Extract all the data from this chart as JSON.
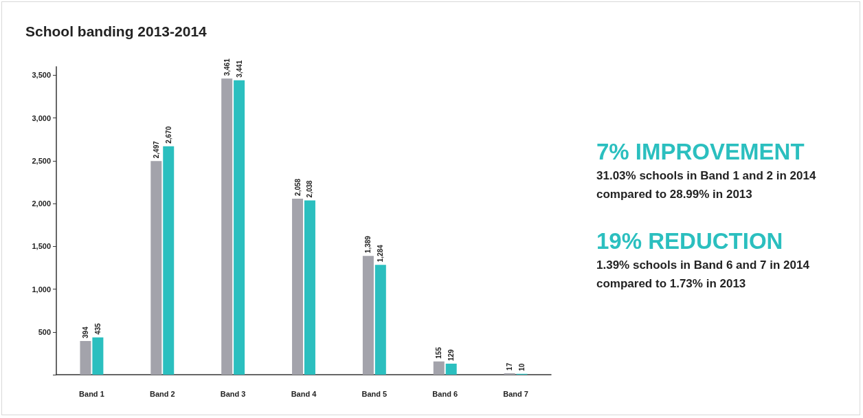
{
  "chart_data": {
    "type": "bar",
    "title": "School banding 2013-2014",
    "categories": [
      "Band 1",
      "Band 2",
      "Band 3",
      "Band 4",
      "Band 5",
      "Band 6",
      "Band 7"
    ],
    "series": [
      {
        "color": "#a3a3ab",
        "values": [
          394,
          2497,
          3461,
          2058,
          1389,
          155,
          17
        ],
        "value_labels": [
          "394",
          "2,497",
          "3,461",
          "2,058",
          "1,389",
          "155",
          "17"
        ]
      },
      {
        "color": "#2bbfbf",
        "values": [
          435,
          2670,
          3441,
          2038,
          1284,
          129,
          10
        ],
        "value_labels": [
          "435",
          "2,670",
          "3,441",
          "2,038",
          "1,284",
          "129",
          "10"
        ]
      }
    ],
    "ylim": [
      0,
      3600
    ],
    "yticks": [
      {
        "value": 0,
        "label": null
      },
      {
        "value": 500,
        "label": "500"
      },
      {
        "value": 1000,
        "label": "1,000"
      },
      {
        "value": 1500,
        "label": "1,500"
      },
      {
        "value": 2000,
        "label": "2,000"
      },
      {
        "value": 2500,
        "label": "2,500"
      },
      {
        "value": 3000,
        "label": "3,000"
      },
      {
        "value": 3500,
        "label": "3,500"
      }
    ],
    "grid": false,
    "annotations": [
      "7% IMPROVEMENT",
      "31.03% schools in Band 1 and 2 in 2014 compared to 28.99% in 2013",
      "19% REDUCTION",
      "1.39% schools in Band 6 and 7 in 2014 compared to 1.73% in 2013"
    ]
  }
}
